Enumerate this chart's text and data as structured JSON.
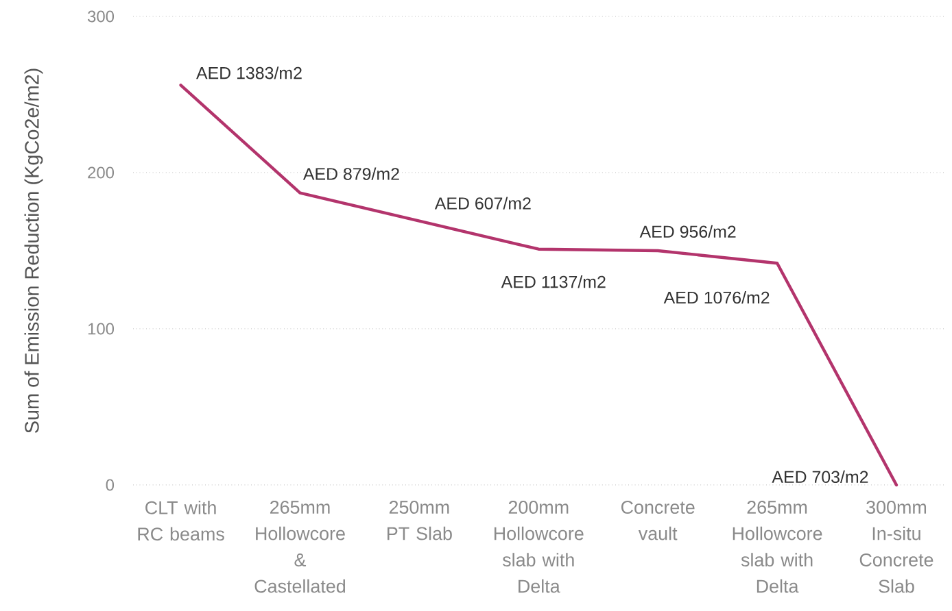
{
  "chart_data": {
    "type": "line",
    "ylabel": "Sum of Emission Reduction (KgCo2e/m2)",
    "categories": [
      "CLT with RC beams",
      "265mm Hollowcore & Castellated",
      "250mm PT Slab",
      "200mm Hollowcore slab with Delta",
      "Concrete vault",
      "265mm Hollowcore slab with Delta",
      "300mm In-situ Concrete Slab"
    ],
    "values": [
      256,
      187,
      169,
      151,
      150,
      142,
      0
    ],
    "color": "#b3346c",
    "ylim": [
      0,
      300
    ],
    "yticks": [
      0,
      100,
      200,
      300
    ],
    "grid": "y",
    "annotations": [
      {
        "text": "AED 1383/m2",
        "x": "CLT with RC beams",
        "y": 256
      },
      {
        "text": "AED 879/m2",
        "x": "265mm Hollowcore & Castellated",
        "y": 187
      },
      {
        "text": "AED 607/m2",
        "x": "250mm PT Slab",
        "y": 169
      },
      {
        "text": "AED 1137/m2",
        "x": "200mm Hollowcore slab with Delta",
        "y": 151
      },
      {
        "text": "AED 956/m2",
        "x": "Concrete vault",
        "y": 150
      },
      {
        "text": "AED 1076/m2",
        "x": "265mm Hollowcore slab with Delta",
        "y": 142
      },
      {
        "text": "AED 703/m2",
        "x": "300mm In-situ Concrete Slab",
        "y": 0
      }
    ]
  }
}
